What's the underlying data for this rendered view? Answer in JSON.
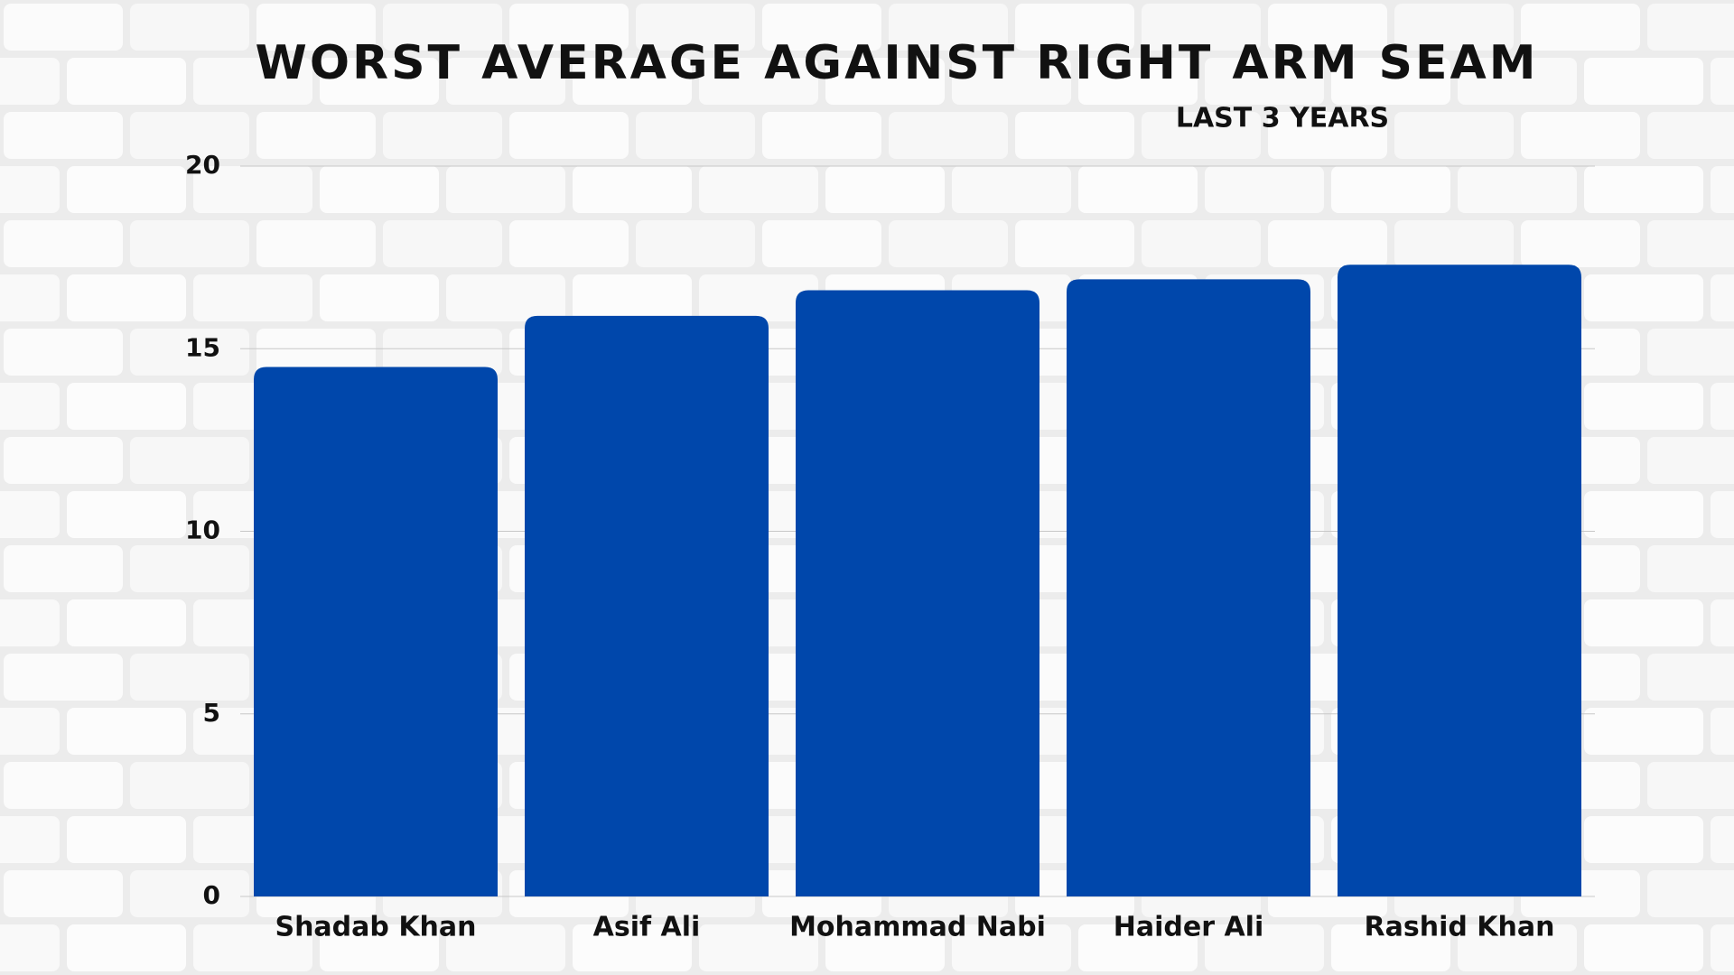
{
  "chart_data": {
    "type": "bar",
    "title": "WORST AVERAGE AGAINST RIGHT ARM SEAM",
    "subtitle": "LAST 3 YEARS",
    "categories": [
      "Shadab Khan",
      "Asif Ali",
      "Mohammad Nabi",
      "Haider Ali",
      "Rashid Khan"
    ],
    "values": [
      14.5,
      15.9,
      16.6,
      16.9,
      17.3
    ],
    "color": "#0047ab",
    "ylim": [
      0,
      20
    ],
    "yticks": [
      0,
      5,
      10,
      15,
      20
    ],
    "grid": true
  }
}
